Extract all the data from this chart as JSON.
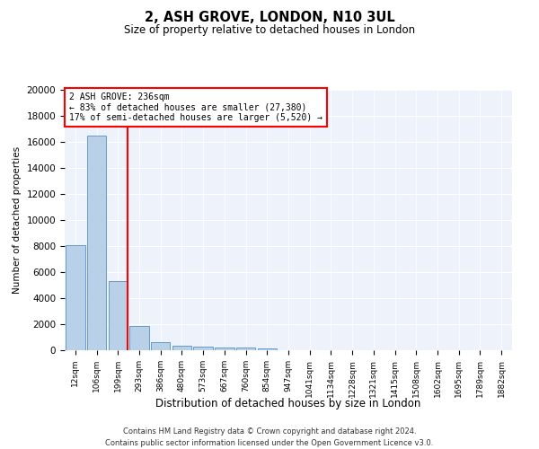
{
  "title": "2, ASH GROVE, LONDON, N10 3UL",
  "subtitle": "Size of property relative to detached houses in London",
  "xlabel": "Distribution of detached houses by size in London",
  "ylabel": "Number of detached properties",
  "categories": [
    "12sqm",
    "106sqm",
    "199sqm",
    "293sqm",
    "386sqm",
    "480sqm",
    "573sqm",
    "667sqm",
    "760sqm",
    "854sqm",
    "947sqm",
    "1041sqm",
    "1134sqm",
    "1228sqm",
    "1321sqm",
    "1415sqm",
    "1508sqm",
    "1602sqm",
    "1695sqm",
    "1789sqm",
    "1882sqm"
  ],
  "bar_heights": [
    8100,
    16500,
    5300,
    1850,
    650,
    340,
    270,
    200,
    180,
    130,
    0,
    0,
    0,
    0,
    0,
    0,
    0,
    0,
    0,
    0,
    0
  ],
  "bar_color": "#b8d0e8",
  "bar_edge_color": "#6699cc",
  "annotation_text": "2 ASH GROVE: 236sqm\n← 83% of detached houses are smaller (27,380)\n17% of semi-detached houses are larger (5,520) →",
  "ylim": [
    0,
    20000
  ],
  "yticks": [
    0,
    2000,
    4000,
    6000,
    8000,
    10000,
    12000,
    14000,
    16000,
    18000,
    20000
  ],
  "footer_line1": "Contains HM Land Registry data © Crown copyright and database right 2024.",
  "footer_line2": "Contains public sector information licensed under the Open Government Licence v3.0.",
  "plot_bg_color": "#eef2fb"
}
